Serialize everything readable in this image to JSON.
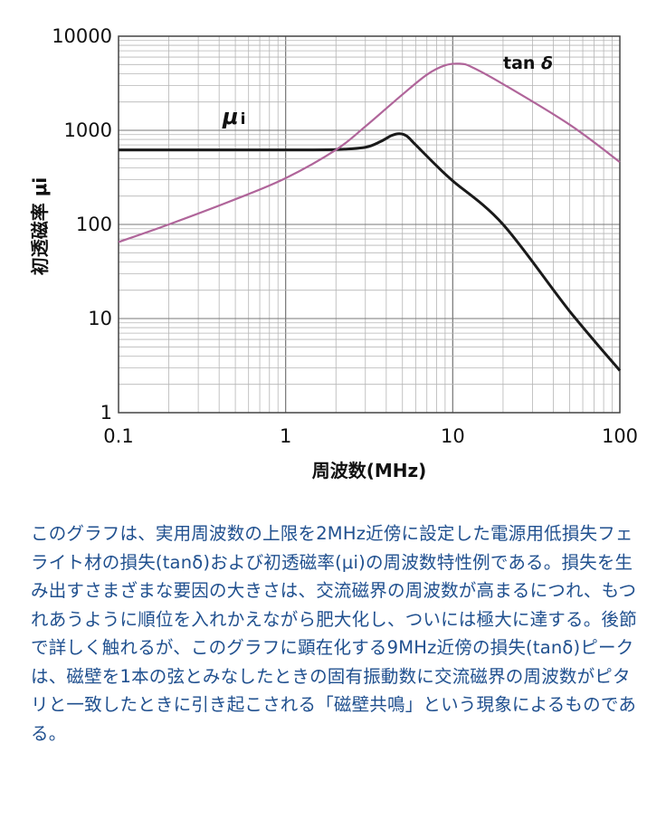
{
  "chart_data": {
    "type": "line",
    "xscale": "log",
    "yscale": "log",
    "xlim": [
      0.1,
      100
    ],
    "ylim": [
      1,
      10000
    ],
    "grid": true,
    "xlabel": "周波数(MHz)",
    "ylabel": "初透磁率 μi",
    "x_ticks": [
      "0.1",
      "1",
      "10",
      "100"
    ],
    "y_ticks": [
      "10000",
      "1000",
      "100",
      "10",
      "1"
    ],
    "series": [
      {
        "name": "μi",
        "color": "#1a1a1a",
        "x": [
          0.1,
          0.3,
          1,
          2,
          3,
          3.7,
          4.3,
          4.8,
          5.3,
          6,
          8,
          10,
          20,
          50,
          100
        ],
        "y": [
          620,
          620,
          620,
          625,
          660,
          760,
          880,
          920,
          870,
          700,
          420,
          290,
          100,
          12,
          2.8
        ]
      },
      {
        "name": "tan δ",
        "color": "#b0659a",
        "x": [
          0.1,
          0.2,
          0.5,
          1,
          2,
          3,
          5,
          7,
          9,
          11,
          13,
          20,
          50,
          100
        ],
        "y": [
          65,
          100,
          185,
          310,
          620,
          1100,
          2400,
          3900,
          4900,
          5100,
          4700,
          3100,
          1150,
          460
        ]
      }
    ]
  },
  "caption": "このグラフは、実用周波数の上限を2MHz近傍に設定した電源用低損失フェライト材の損失(tanδ)および初透磁率(μi)の周波数特性例である。損失を生み出すさまざまな要因の大きさは、交流磁界の周波数が高まるにつれ、もつれあうように順位を入れかえながら肥大化し、ついには極大に達する。後節で詳しく触れるが、このグラフに顕在化する9MHz近傍の損失(tanδ)ピークは、磁壁を1本の弦とみなしたときの固有振動数に交流磁界の周波数がピタリと一致したときに引き起こされる「磁壁共鳴」という現象によるものである。"
}
